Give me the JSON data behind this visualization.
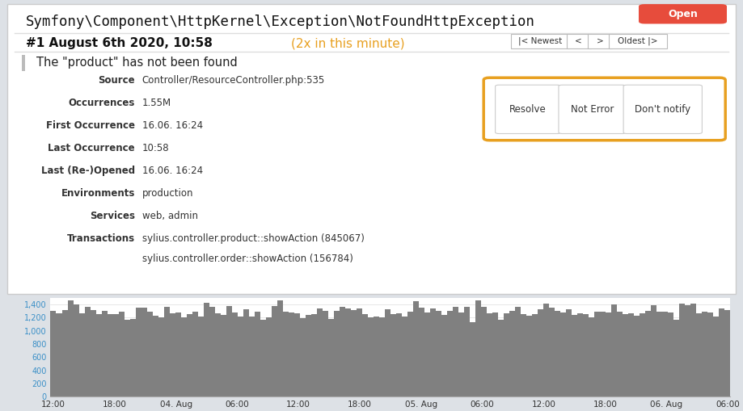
{
  "title": "Symfony\\Component\\HttpKernel\\Exception\\NotFoundHttpException",
  "badge_text": "Open",
  "badge_color": "#e74c3c",
  "occurrence_line": "#1 August 6th 2020, 10:58",
  "occurrence_note": "(2x in this minute)",
  "nav_buttons": [
    "|< Newest",
    "<",
    ">",
    "Oldest |>"
  ],
  "message": "The \"product\" has not been found",
  "fields": [
    [
      "Source",
      "Controller/ResourceController.php:535"
    ],
    [
      "Occurrences",
      "1.55M"
    ],
    [
      "First Occurrence",
      "16.06. 16:24"
    ],
    [
      "Last Occurrence",
      "10:58"
    ],
    [
      "Last (Re-)Opened",
      "16.06. 16:24"
    ],
    [
      "Environments",
      "production"
    ],
    [
      "Services",
      "web, admin"
    ],
    [
      "Transactions",
      "sylius.controller.product::showAction (845067)\nsylius.controller.order::showAction (156784)"
    ]
  ],
  "action_buttons": [
    "Resolve",
    "Not Error",
    "Don't notify"
  ],
  "action_border_color": "#e8a020",
  "chart_yticks": [
    "0",
    "200",
    "400",
    "600",
    "800",
    "1,000",
    "1,200",
    "1,400"
  ],
  "chart_xticks": [
    "12:00",
    "18:00",
    "04. Aug",
    "06:00",
    "12:00",
    "18:00",
    "05. Aug",
    "06:00",
    "12:00",
    "18:00",
    "06. Aug",
    "06:00"
  ],
  "chart_bar_color": "#808080",
  "blue_text": "#3a8fc7"
}
